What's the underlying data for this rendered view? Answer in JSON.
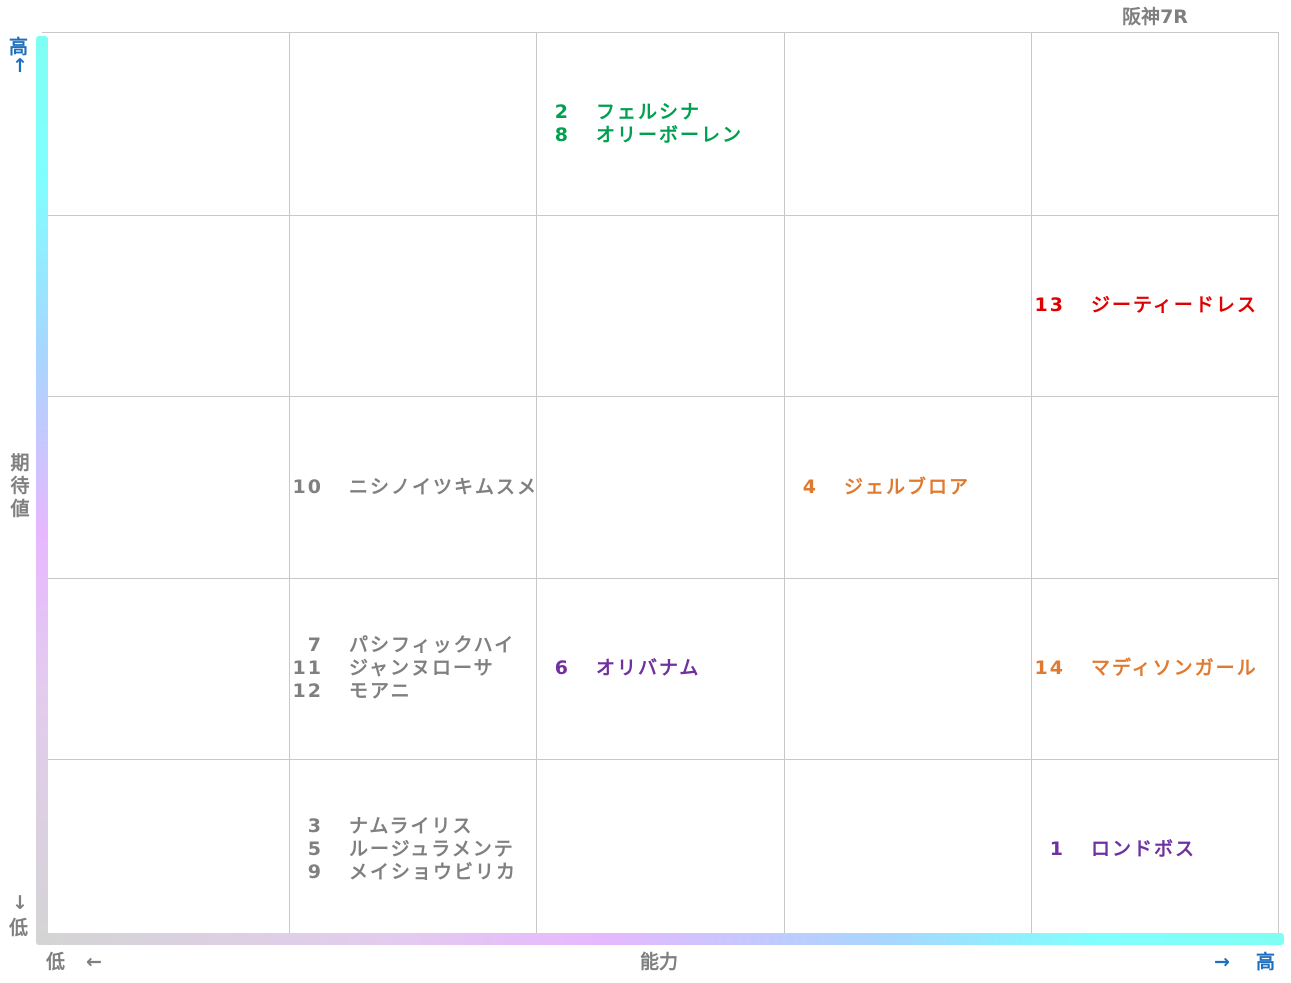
{
  "race_title": "阪神7R",
  "y_axis": {
    "label": "期待値",
    "high": "高",
    "low": "低",
    "up_arrow": "↑",
    "down_arrow": "↓"
  },
  "x_axis": {
    "label": "能力",
    "low": "低",
    "high": "高",
    "left_arrow": "←",
    "right_arrow": "→"
  },
  "colors": {
    "green": "#00a050",
    "red": "#e00000",
    "orange": "#e07a30",
    "gray": "#808080",
    "purple": "#7030a0",
    "axis_blue": "#1f6fbf"
  },
  "chart_data": {
    "type": "table",
    "rows": 5,
    "columns": 5,
    "cells": [
      {
        "col": 2,
        "row": 0,
        "color": "green",
        "entries": [
          {
            "num": "2",
            "name": "フェルシナ"
          },
          {
            "num": "8",
            "name": "オリーボーレン"
          }
        ]
      },
      {
        "col": 4,
        "row": 1,
        "color": "red",
        "entries": [
          {
            "num": "13",
            "name": "ジーティードレス"
          }
        ]
      },
      {
        "col": 1,
        "row": 2,
        "color": "gray",
        "entries": [
          {
            "num": "10",
            "name": "ニシノイツキムスメ"
          }
        ]
      },
      {
        "col": 3,
        "row": 2,
        "color": "orange",
        "entries": [
          {
            "num": "4",
            "name": "ジェルブロア"
          }
        ]
      },
      {
        "col": 1,
        "row": 3,
        "color": "gray",
        "entries": [
          {
            "num": "7",
            "name": "パシフィックハイ"
          },
          {
            "num": "11",
            "name": "ジャンヌローサ"
          },
          {
            "num": "12",
            "name": "モアニ"
          }
        ]
      },
      {
        "col": 2,
        "row": 3,
        "color": "purple",
        "entries": [
          {
            "num": "6",
            "name": "オリバナム"
          }
        ]
      },
      {
        "col": 4,
        "row": 3,
        "color": "orange",
        "entries": [
          {
            "num": "14",
            "name": "マディソンガール"
          }
        ]
      },
      {
        "col": 1,
        "row": 4,
        "color": "gray",
        "entries": [
          {
            "num": "3",
            "name": "ナムライリス"
          },
          {
            "num": "5",
            "name": "ルージュラメンテ"
          },
          {
            "num": "9",
            "name": "メイショウビリカ"
          }
        ]
      },
      {
        "col": 4,
        "row": 4,
        "color": "purple",
        "entries": [
          {
            "num": "1",
            "name": "ロンドボス"
          }
        ]
      }
    ]
  }
}
